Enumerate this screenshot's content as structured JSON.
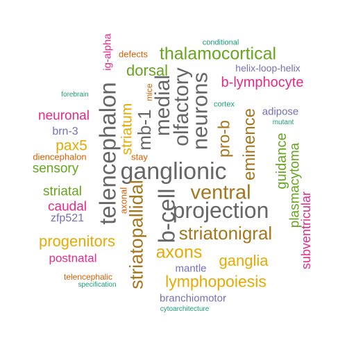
{
  "colors": {
    "teal": "#1b9e77",
    "orange": "#d95f02",
    "purple": "#7570b3",
    "magenta": "#e7298a",
    "green": "#66a61e",
    "gold": "#e6ab02",
    "brown": "#a6761d",
    "gray": "#666666"
  },
  "words": [
    {
      "text": "ganglionic",
      "color": "gray"
    },
    {
      "text": "projection",
      "color": "gray"
    },
    {
      "text": "telencephalon",
      "color": "gray"
    },
    {
      "text": "b-cell",
      "color": "gray"
    },
    {
      "text": "neurons",
      "color": "gray"
    },
    {
      "text": "striatopallidal",
      "color": "brown"
    },
    {
      "text": "medial",
      "color": "gray"
    },
    {
      "text": "olfactory",
      "color": "gray"
    },
    {
      "text": "ventral",
      "color": "brown"
    },
    {
      "text": "striatonigral",
      "color": "brown"
    },
    {
      "text": "thalamocortical",
      "color": "green"
    },
    {
      "text": "lymphopoiesis",
      "color": "gold"
    },
    {
      "text": "axons",
      "color": "gold"
    },
    {
      "text": "mb-1",
      "color": "gray"
    },
    {
      "text": "pro-b",
      "color": "brown"
    },
    {
      "text": "eminence",
      "color": "brown"
    },
    {
      "text": "ganglia",
      "color": "gold"
    },
    {
      "text": "progenitors",
      "color": "gold"
    },
    {
      "text": "b-lymphocyte",
      "color": "magenta"
    },
    {
      "text": "dorsal",
      "color": "green"
    },
    {
      "text": "striatum",
      "color": "gold"
    },
    {
      "text": "guidance",
      "color": "green"
    },
    {
      "text": "plasmacytoma",
      "color": "green"
    },
    {
      "text": "subventricular",
      "color": "magenta"
    },
    {
      "text": "pax5",
      "color": "gold"
    },
    {
      "text": "neuronal",
      "color": "magenta"
    },
    {
      "text": "sensory",
      "color": "green"
    },
    {
      "text": "striatal",
      "color": "green"
    },
    {
      "text": "caudal",
      "color": "magenta"
    },
    {
      "text": "postnatal",
      "color": "magenta"
    },
    {
      "text": "branchiomotor",
      "color": "purple"
    },
    {
      "text": "mantle",
      "color": "purple"
    },
    {
      "text": "helix-loop-helix",
      "color": "purple"
    },
    {
      "text": "adipose",
      "color": "purple"
    },
    {
      "text": "zfp521",
      "color": "purple"
    },
    {
      "text": "brn-3",
      "color": "purple"
    },
    {
      "text": "ig-alpha",
      "color": "magenta"
    },
    {
      "text": "diencephalon",
      "color": "orange"
    },
    {
      "text": "axonal",
      "color": "orange"
    },
    {
      "text": "stay",
      "color": "orange"
    },
    {
      "text": "defects",
      "color": "orange"
    },
    {
      "text": "mice",
      "color": "orange"
    },
    {
      "text": "telencephalic",
      "color": "orange"
    },
    {
      "text": "conditional",
      "color": "teal"
    },
    {
      "text": "forebrain",
      "color": "teal"
    },
    {
      "text": "cortex",
      "color": "teal"
    },
    {
      "text": "mutant",
      "color": "teal"
    },
    {
      "text": "specification",
      "color": "teal"
    },
    {
      "text": "cytoarchitecture",
      "color": "teal"
    }
  ]
}
